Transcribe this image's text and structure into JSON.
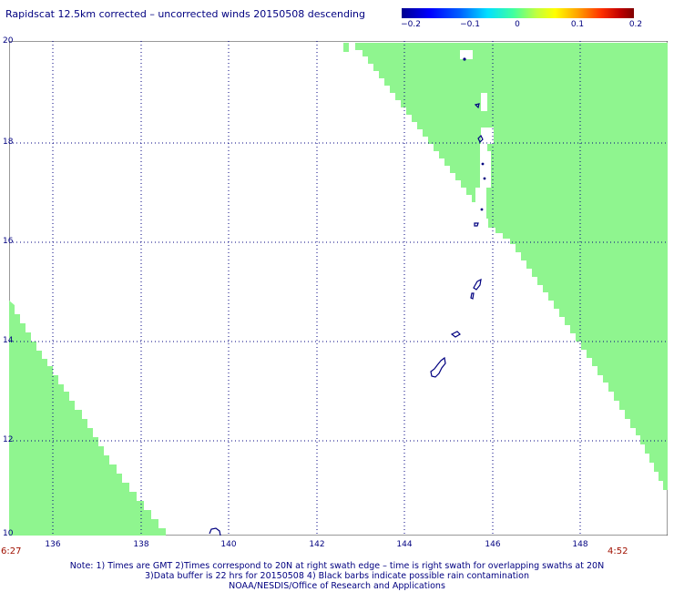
{
  "title": "Rapidscat 12.5km corrected – uncorrected winds 20150508 descending",
  "colorbar": {
    "labels": [
      "−0.2",
      "−0.1",
      "0",
      "0.1",
      "0.2"
    ],
    "colors": [
      "#00008f",
      "#00e0ff",
      "#ffff00",
      "#ff3000",
      "#800000"
    ]
  },
  "axes": {
    "y_labels": [
      "20",
      "18",
      "16",
      "14",
      "12",
      "10"
    ],
    "x_labels": [
      "136",
      "138",
      "140",
      "142",
      "144",
      "146",
      "148"
    ]
  },
  "swath_color": "#8ff58f",
  "times": {
    "left": "6:27",
    "right": "4:52"
  },
  "notes": {
    "line1": "Note: 1) Times are GMT 2)Times correspond to 20N at right swath edge – time is right swath for overlapping swaths at 20N",
    "line2": "3)Data buffer is 22 hrs for 20150508 4) Black barbs indicate possible rain contamination",
    "line3": "NOAA/NESDIS/Office of Research and Applications"
  }
}
